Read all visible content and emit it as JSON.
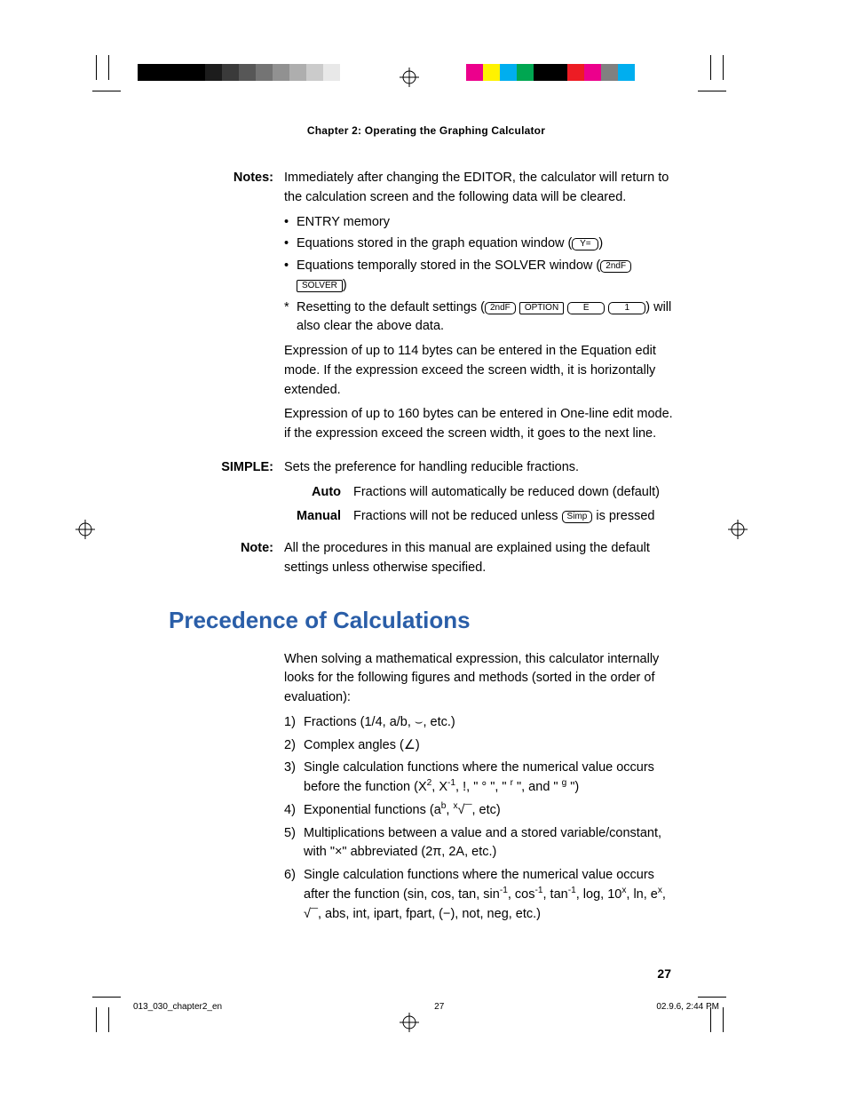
{
  "header": {
    "chapter": "Chapter 2: Operating the Graphing Calculator"
  },
  "notes": {
    "label": "Notes:",
    "intro": "Immediately after changing the EDITOR, the calculator will return to the calculation screen and the following data will be cleared.",
    "b1": "ENTRY memory",
    "b2_a": "Equations stored in the graph equation window (",
    "b2_b": ")",
    "b3_a": "Equations temporally stored in the SOLVER window (",
    "b3_b": ")",
    "b4_a": "Resetting to the default settings (",
    "b4_b": ") will also clear the above data.",
    "p2": "Expression of up to 114 bytes can be entered in the Equation edit mode. If the expression exceed the screen width, it is horizontally extended.",
    "p3": "Expression of up to 160 bytes can be entered in One-line edit mode. if the expression exceed the screen width, it goes to the next line."
  },
  "simple": {
    "label": "SIMPLE:",
    "intro": "Sets the preference for handling reducible fractions.",
    "auto_label": "Auto",
    "auto_text": "Fractions will automatically be reduced down (default)",
    "manual_label": "Manual",
    "manual_text_a": "Fractions will not be reduced unless ",
    "manual_text_b": " is pressed"
  },
  "note2": {
    "label": "Note:",
    "text": "All the procedures in this manual are explained using the default settings unless otherwise specified."
  },
  "section_title": "Precedence of Calculations",
  "precedence": {
    "intro": "When solving a mathematical expression, this calculator internally looks for the following figures and methods (sorted in the order of evaluation):",
    "i1": "Fractions (1/4, a/b, ⌣, etc.)",
    "i2": "Complex angles (∠)",
    "i3_a": "Single calculation functions where the numerical value occurs before the function (X",
    "i3_b": ", X",
    "i3_c": ", !, \" ° \", \" ",
    "i3_d": " \", and \" ",
    "i3_e": " \")",
    "i4_a": "Exponential functions (a",
    "i4_b": ", ",
    "i4_c": ", etc)",
    "i5": "Multiplications between a value and a stored variable/constant, with \"×\" abbreviated (2π, 2A, etc.)",
    "i6_a": "Single calculation functions where the numerical value occurs after the function (sin, cos, tan, sin",
    "i6_b": ", cos",
    "i6_c": ", tan",
    "i6_d": ", log, 10",
    "i6_e": ", ln, e",
    "i6_f": ", √¯, abs, int, ipart, fpart, (−), not, neg, etc.)"
  },
  "keys": {
    "y_eq": "Y=",
    "secondf": "2ndF",
    "solver": "SOLVER",
    "option": "OPTION",
    "e": "E",
    "one": "1",
    "simp": "Simp"
  },
  "page_number": "27",
  "footer": {
    "file": "013_030_chapter2_en",
    "page": "27",
    "date": "02.9.6, 2:44 PM"
  },
  "marks": {
    "gray_bar": [
      "#000000",
      "#000000",
      "#000000",
      "#000000",
      "#1c1c1c",
      "#3a3a3a",
      "#575757",
      "#747474",
      "#919191",
      "#aeaeae",
      "#cbcbcb",
      "#e8e8e8"
    ],
    "color_bar": [
      "#ec008c",
      "#fff200",
      "#00aeef",
      "#00a651",
      "#000000",
      "#000000",
      "#ed1c24",
      "#ec008c",
      "#808080",
      "#00aeef"
    ]
  }
}
